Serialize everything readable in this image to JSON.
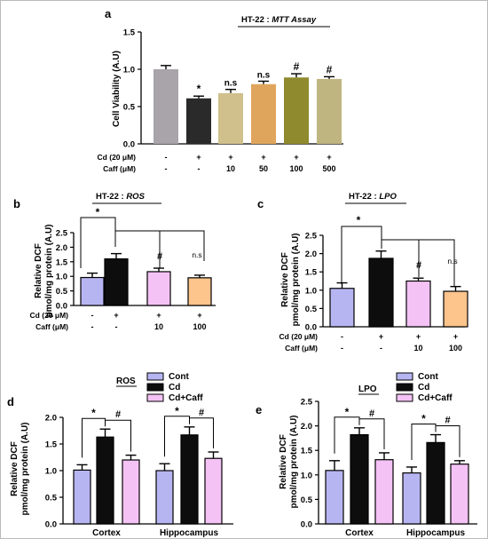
{
  "panels": {
    "a": {
      "letter": "a",
      "header": "HT-22 : ",
      "header_em": "MTT Assay",
      "ylabel": "Cell Viability (A.U)",
      "yticks": [
        "0.0",
        "0.5",
        "1.0",
        "1.5"
      ],
      "rows": [
        {
          "label": "Cd (20 μM)",
          "values": [
            "-",
            "+",
            "+",
            "+",
            "+",
            "+"
          ]
        },
        {
          "label": "Caff (μM)",
          "values": [
            "-",
            "-",
            "10",
            "50",
            "100",
            "500"
          ]
        }
      ]
    },
    "b": {
      "letter": "b",
      "header": "HT-22 : ",
      "header_em": "ROS",
      "ylabel_line1": "Relative DCF",
      "ylabel_line2": "pmol/mg protein (A.U)",
      "yticks": [
        "0.0",
        "0.5",
        "1.0",
        "1.5",
        "2.0",
        "2.5"
      ],
      "rows": [
        {
          "label": "Cd (20 μM)",
          "values": [
            "-",
            "+",
            "+",
            "+"
          ]
        },
        {
          "label": "Caff (μM)",
          "values": [
            "-",
            "-",
            "10",
            "100"
          ]
        }
      ]
    },
    "c": {
      "letter": "c",
      "header": "HT-22 : ",
      "header_em": "LPO",
      "ylabel_line1": "Relative DCF",
      "ylabel_line2": "pmol/mg protein (A.U)",
      "yticks": [
        "0.0",
        "0.5",
        "1.0",
        "1.5",
        "2.0",
        "2.5"
      ],
      "rows": [
        {
          "label": "Cd (20 μM)",
          "values": [
            "-",
            "+",
            "+",
            "+"
          ]
        },
        {
          "label": "Caff (μM)",
          "values": [
            "-",
            "-",
            "10",
            "100"
          ]
        }
      ]
    },
    "d": {
      "letter": "d",
      "title": "ROS",
      "ylabel_line1": "Relative DCF",
      "ylabel_line2": "pmol/mg protein (A.U)",
      "yticks": [
        "0.0",
        "0.5",
        "1.0",
        "1.5",
        "2.0"
      ],
      "groups": [
        "Cortex",
        "Hippocampus"
      ],
      "legend": [
        "Cont",
        "Cd",
        "Cd+Caff"
      ]
    },
    "e": {
      "letter": "e",
      "title": "LPO",
      "ylabel_line1": "Relative DCF",
      "ylabel_line2": "pmol/mg protein (A.U)",
      "yticks": [
        "0.0",
        "0.5",
        "1.0",
        "1.5",
        "2.0",
        "2.5"
      ],
      "groups": [
        "Cortex",
        "Hippocampus"
      ],
      "legend": [
        "Cont",
        "Cd",
        "Cd+Caff"
      ]
    }
  },
  "chart_data": [
    {
      "id": "a",
      "type": "bar",
      "title": "HT-22 : MTT Assay",
      "ylabel": "Cell Viability (A.U)",
      "ylim": [
        0,
        1.5
      ],
      "categories": [
        "1",
        "2",
        "3",
        "4",
        "5",
        "6"
      ],
      "values": [
        1.0,
        0.61,
        0.68,
        0.8,
        0.89,
        0.87
      ],
      "errors": [
        0.05,
        0.03,
        0.05,
        0.04,
        0.05,
        0.03
      ],
      "annotations": [
        "",
        "*",
        "n.s",
        "n.s",
        "#",
        "#"
      ],
      "colors": [
        "#a8a4aa",
        "#2a2a2a",
        "#cfc08c",
        "#e0a55c",
        "#8f8a2e",
        "#bfb581"
      ]
    },
    {
      "id": "b",
      "type": "bar",
      "title": "HT-22 : ROS",
      "ylabel": "Relative DCF pmol/mg protein (A.U)",
      "ylim": [
        0,
        2.5
      ],
      "categories": [
        "1",
        "2",
        "3",
        "4"
      ],
      "values": [
        0.96,
        1.6,
        1.16,
        0.95
      ],
      "errors": [
        0.15,
        0.18,
        0.12,
        0.09
      ],
      "colors": [
        "#b7b5f1",
        "#0d0d0d",
        "#f4c2f5",
        "#fdc48c"
      ],
      "annotations": [
        {
          "type": "*",
          "from": 0,
          "to": 1
        },
        {
          "type": "#",
          "at": 2
        },
        {
          "type": "n.s",
          "at": 3
        }
      ]
    },
    {
      "id": "c",
      "type": "bar",
      "title": "HT-22 : LPO",
      "ylabel": "Relative DCF pmol/mg protein (A.U)",
      "ylim": [
        0,
        2.5
      ],
      "categories": [
        "1",
        "2",
        "3",
        "4"
      ],
      "values": [
        1.05,
        1.87,
        1.25,
        0.97
      ],
      "errors": [
        0.15,
        0.2,
        0.08,
        0.13
      ],
      "colors": [
        "#b7b5f1",
        "#0d0d0d",
        "#f4c2f5",
        "#fdc48c"
      ],
      "annotations": [
        {
          "type": "*",
          "from": 0,
          "to": 1
        },
        {
          "type": "#",
          "at": 2
        },
        {
          "type": "n.s",
          "at": 3
        }
      ]
    },
    {
      "id": "d",
      "type": "bar",
      "title": "ROS",
      "ylabel": "Relative DCF pmol/mg protein (A.U)",
      "ylim": [
        0,
        2.0
      ],
      "categories": [
        "Cortex",
        "Hippocampus"
      ],
      "series": [
        {
          "name": "Cont",
          "values": [
            1.01,
            1.0
          ],
          "errors": [
            0.1,
            0.13
          ],
          "color": "#b7b5f1"
        },
        {
          "name": "Cd",
          "values": [
            1.63,
            1.67
          ],
          "errors": [
            0.15,
            0.15
          ],
          "color": "#0d0d0d"
        },
        {
          "name": "Cd+Caff",
          "values": [
            1.2,
            1.23
          ],
          "errors": [
            0.09,
            0.12
          ],
          "color": "#f4c2f5"
        }
      ],
      "annotations": [
        "*",
        "#"
      ],
      "legend": "top-right"
    },
    {
      "id": "e",
      "type": "bar",
      "title": "LPO",
      "ylabel": "Relative DCF pmol/mg protein (A.U)",
      "ylim": [
        0,
        2.5
      ],
      "categories": [
        "Cortex",
        "Hippocampus"
      ],
      "series": [
        {
          "name": "Cont",
          "values": [
            1.09,
            1.04
          ],
          "errors": [
            0.2,
            0.12
          ],
          "color": "#b7b5f1"
        },
        {
          "name": "Cd",
          "values": [
            1.82,
            1.66
          ],
          "errors": [
            0.14,
            0.16
          ],
          "color": "#0d0d0d"
        },
        {
          "name": "Cd+Caff",
          "values": [
            1.31,
            1.22
          ],
          "errors": [
            0.14,
            0.07
          ],
          "color": "#f4c2f5"
        }
      ],
      "annotations": [
        "*",
        "#"
      ],
      "legend": "top-right"
    }
  ]
}
